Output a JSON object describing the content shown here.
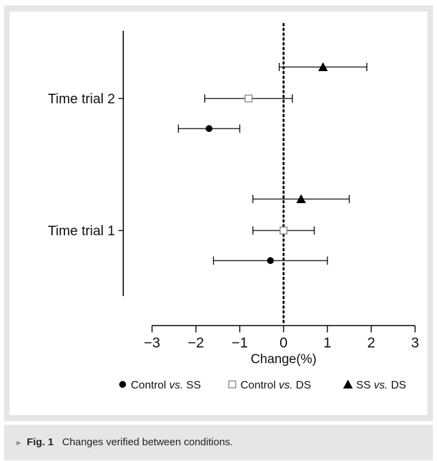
{
  "caption": {
    "marker": "►",
    "label": "Fig. 1",
    "text": "Changes verified between conditions."
  },
  "chart_data": {
    "type": "scatter",
    "orientation": "horizontal-forest",
    "xlabel": "Change(%)",
    "xlim": [
      -3,
      3
    ],
    "xticks": [
      -3,
      -2,
      -1,
      0,
      1,
      2,
      3
    ],
    "xtick_labels": [
      "−3",
      "−2",
      "−1",
      "0",
      "1",
      "2",
      "3"
    ],
    "reference_line": 0,
    "reference_line_style": "dotted",
    "categories": [
      "Time trial 2",
      "Time trial 1"
    ],
    "series": [
      {
        "name": "Control vs. SS",
        "name_parts": [
          "Control ",
          "vs.",
          " SS"
        ],
        "marker": "filled-circle",
        "color": "#000000",
        "points": [
          {
            "category": "Time trial 2",
            "value": -1.7,
            "low": -2.4,
            "high": -1.0
          },
          {
            "category": "Time trial 1",
            "value": -0.3,
            "low": -1.6,
            "high": 1.0
          }
        ]
      },
      {
        "name": "Control vs. DS",
        "name_parts": [
          "Control ",
          "vs.",
          " DS"
        ],
        "marker": "open-square",
        "color": "#8a8a8a",
        "points": [
          {
            "category": "Time trial 2",
            "value": -0.8,
            "low": -1.8,
            "high": 0.2
          },
          {
            "category": "Time trial 1",
            "value": 0.0,
            "low": -0.7,
            "high": 0.7
          }
        ]
      },
      {
        "name": "SS vs. DS",
        "name_parts": [
          "SS ",
          "vs.",
          " DS"
        ],
        "marker": "filled-triangle",
        "color": "#000000",
        "points": [
          {
            "category": "Time trial 2",
            "value": 0.9,
            "low": -0.1,
            "high": 1.9
          },
          {
            "category": "Time trial 1",
            "value": 0.4,
            "low": -0.7,
            "high": 1.5
          }
        ]
      }
    ],
    "legend_position": "bottom",
    "grid": false
  }
}
